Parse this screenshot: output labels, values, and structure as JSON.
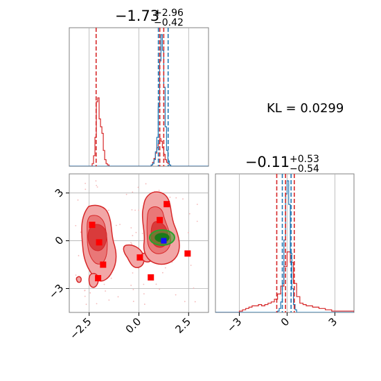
{
  "annotation": "KL = 0.0299",
  "colors": {
    "red": "#d62728",
    "blue": "#1f77b4",
    "green": "#2ca02c",
    "square": "#ff0000",
    "grid": "#b0b0b0",
    "frame": "#808080"
  },
  "chart_data": [
    {
      "id": "marginal-x",
      "type": "line",
      "title": {
        "main": "−1.73",
        "sup": "+2.96",
        "sub": "−0.42"
      },
      "xlim": [
        -3.5,
        3.5
      ],
      "grid": true,
      "series": [
        {
          "color": "#d62728",
          "x": [
            -3.5,
            -2.35,
            -2.28,
            -2.21,
            -2.14,
            -2.07,
            -2.0,
            -1.93,
            -1.86,
            -1.79,
            -1.72,
            -1.65,
            -1.58,
            -1.5,
            0.55,
            0.62,
            0.69,
            0.76,
            0.83,
            0.9,
            0.97,
            1.04,
            1.11,
            1.18,
            1.25,
            1.32,
            1.39,
            1.46,
            1.53,
            1.6,
            3.5
          ],
          "values": [
            0,
            0.02,
            0.08,
            0.22,
            0.49,
            0.52,
            0.36,
            0.3,
            0.25,
            0.12,
            0.05,
            0.02,
            0.01,
            0,
            0,
            0.01,
            0.03,
            0.06,
            0.1,
            0.14,
            0.17,
            0.21,
            0.19,
            0.14,
            0.09,
            0.05,
            0.03,
            0.02,
            0.01,
            0,
            0
          ]
        },
        {
          "color": "#1f77b4",
          "x": [
            -3.5,
            0.55,
            0.62,
            0.69,
            0.76,
            0.83,
            0.9,
            0.97,
            1.04,
            1.11,
            1.18,
            1.25,
            1.32,
            1.39,
            1.46,
            1.53,
            1.6,
            1.67,
            3.5
          ],
          "values": [
            0,
            0,
            0.01,
            0.02,
            0.05,
            0.11,
            0.22,
            0.45,
            0.8,
            1.0,
            0.88,
            0.6,
            0.3,
            0.12,
            0.04,
            0.01,
            0,
            0,
            0
          ]
        }
      ],
      "quantile_lines": [
        {
          "x": -2.15,
          "color": "#d62728"
        },
        {
          "x": 1.05,
          "color": "#d62728"
        },
        {
          "x": 1.25,
          "color": "#d62728"
        },
        {
          "x": 0.98,
          "color": "#1f77b4"
        },
        {
          "x": 1.47,
          "color": "#1f77b4"
        }
      ]
    },
    {
      "id": "joint",
      "type": "scatter",
      "xlim": [
        -3.5,
        3.5
      ],
      "ylim": [
        -4.5,
        4.2
      ],
      "xticks": [
        -2.5,
        0.0,
        2.5
      ],
      "xtick_labels": [
        "−2.5",
        "0.0",
        "2.5"
      ],
      "yticks": [
        3,
        0,
        -3
      ],
      "ytick_labels": [
        "3",
        "0",
        "−3"
      ],
      "grid": true,
      "red_squares": [
        {
          "x": -2.35,
          "y": 1.0
        },
        {
          "x": -2.0,
          "y": -0.1
        },
        {
          "x": -1.8,
          "y": -1.5
        },
        {
          "x": -2.05,
          "y": -2.35
        },
        {
          "x": 0.05,
          "y": -1.05
        },
        {
          "x": 0.6,
          "y": -2.3
        },
        {
          "x": 1.05,
          "y": 1.3
        },
        {
          "x": 1.4,
          "y": 2.3
        },
        {
          "x": 2.45,
          "y": -0.8
        }
      ],
      "blue_marker": {
        "x": 1.25,
        "y": 0.0
      }
    },
    {
      "id": "marginal-y",
      "type": "line",
      "title": {
        "main": "−0.11",
        "sup": "+0.53",
        "sub": "−0.54"
      },
      "xlim": [
        -4.5,
        4.2
      ],
      "xticks": [
        -3,
        0,
        3
      ],
      "xtick_labels": [
        "−3",
        "0",
        "3"
      ],
      "grid": true,
      "series": [
        {
          "color": "#d62728",
          "x": [
            -4.5,
            -3.0,
            -2.8,
            -2.6,
            -2.4,
            -2.2,
            -2.0,
            -1.8,
            -1.6,
            -1.4,
            -1.2,
            -1.0,
            -0.8,
            -0.6,
            -0.4,
            -0.2,
            0.0,
            0.2,
            0.4,
            0.6,
            0.8,
            1.0,
            1.2,
            1.4,
            1.6,
            1.8,
            2.0,
            2.2,
            2.4,
            2.6,
            2.8,
            3.0,
            4.2
          ],
          "values": [
            0,
            0.01,
            0.02,
            0.03,
            0.04,
            0.05,
            0.05,
            0.06,
            0.05,
            0.06,
            0.07,
            0.08,
            0.1,
            0.14,
            0.2,
            0.35,
            0.46,
            0.38,
            0.22,
            0.12,
            0.07,
            0.06,
            0.05,
            0.05,
            0.04,
            0.04,
            0.03,
            0.03,
            0.02,
            0.02,
            0.01,
            0.01,
            0
          ]
        },
        {
          "color": "#1f77b4",
          "x": [
            -4.5,
            -0.7,
            -0.6,
            -0.5,
            -0.4,
            -0.3,
            -0.2,
            -0.1,
            0.0,
            0.1,
            0.2,
            0.3,
            0.4,
            0.5,
            0.6,
            4.2
          ],
          "values": [
            0,
            0,
            0.01,
            0.03,
            0.08,
            0.22,
            0.55,
            0.9,
            1.0,
            0.82,
            0.45,
            0.18,
            0.06,
            0.02,
            0,
            0
          ]
        }
      ],
      "quantile_lines": [
        {
          "x": -0.65,
          "color": "#d62728"
        },
        {
          "x": -0.1,
          "color": "#d62728"
        },
        {
          "x": 0.45,
          "color": "#d62728"
        },
        {
          "x": -0.3,
          "color": "#1f77b4"
        },
        {
          "x": 0.25,
          "color": "#1f77b4"
        }
      ]
    }
  ]
}
